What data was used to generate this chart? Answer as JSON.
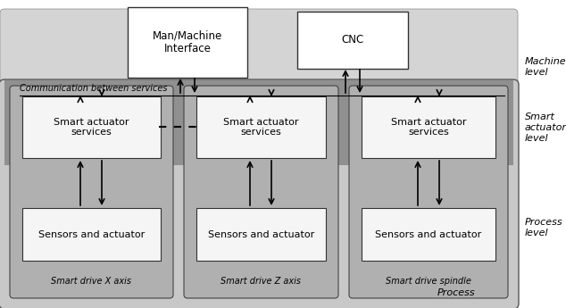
{
  "bg_color": "#ffffff",
  "machine_band_color": "#d0d0d0",
  "smart_band_color": "#909090",
  "process_band_color": "#c0c0c0",
  "drive_col_color": "#a0a0a0",
  "white_box_color": "#ffffff",
  "comm_text": "Communication between services",
  "machine_level_label": "Machine\nlevel",
  "smart_level_label": "Smart\nactuator\nlevel",
  "process_level_label": "Process\nlevel",
  "process_label": "Process",
  "smart_services_label": "Smart actuator\nservices",
  "sensors_label": "Sensors and actuator",
  "mm_label": "Man/Machine\nInterface",
  "cnc_label": "CNC",
  "drive_labels": [
    "Smart drive X axis",
    "Smart drive Z axis",
    "Smart drive spindle"
  ]
}
